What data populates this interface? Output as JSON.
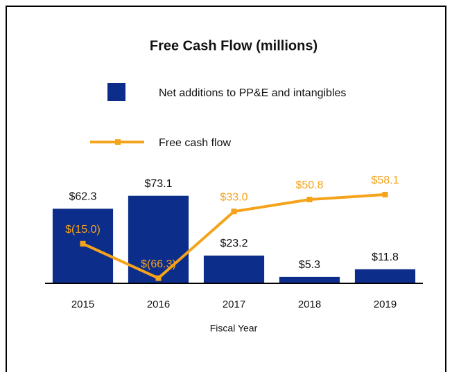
{
  "chart_data": {
    "type": "bar_line",
    "title": "Free Cash Flow (millions)",
    "x_label": "Fiscal Year",
    "categories": [
      "2015",
      "2016",
      "2017",
      "2018",
      "2019"
    ],
    "series": [
      {
        "name": "Net additions to PP&E and intangibles",
        "type": "bar",
        "color": "#0d2d8a",
        "values": [
          62.3,
          73.1,
          23.2,
          5.3,
          11.8
        ],
        "value_labels": [
          "$62.3",
          "$73.1",
          "$23.2",
          "$5.3",
          "$11.8"
        ]
      },
      {
        "name": "Free cash flow",
        "type": "line",
        "axis": "y2",
        "color": "#f5a31a",
        "values": [
          -15.0,
          -66.3,
          33.0,
          50.8,
          58.1
        ],
        "value_labels": [
          "$(15.0)",
          "$(66.3)",
          "$33.0",
          "$50.8",
          "$58.1"
        ]
      }
    ],
    "ylim": [
      0,
      92
    ],
    "y2lim": [
      -74,
      90
    ]
  }
}
